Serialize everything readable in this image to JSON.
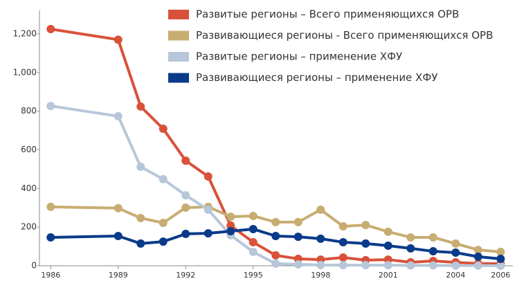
{
  "chart_data": {
    "type": "line",
    "x": [
      1986,
      1989,
      1990,
      1991,
      1992,
      1993,
      1994,
      1995,
      1996,
      1997,
      1998,
      1999,
      2000,
      2001,
      2002,
      2003,
      2004,
      2005,
      2006
    ],
    "series": [
      {
        "name": "Развитые регионы – Всего применяющихся ОРВ",
        "color": "#d9513a",
        "values": [
          1225,
          1170,
          824,
          709,
          544,
          462,
          208,
          122,
          54,
          36,
          32,
          43,
          29,
          32,
          18,
          25,
          18,
          11,
          11
        ]
      },
      {
        "name": "Развивающиеся регионы - Всего применяющихся ОРВ",
        "color": "#c8ad72",
        "values": [
          305,
          298,
          247,
          222,
          301,
          305,
          254,
          258,
          226,
          226,
          290,
          204,
          211,
          176,
          147,
          147,
          115,
          82,
          72
        ]
      },
      {
        "name": "Развитые регионы – применение ХФУ",
        "color": "#b7c7d9",
        "values": [
          827,
          774,
          512,
          448,
          365,
          290,
          158,
          72,
          11,
          7,
          4,
          3,
          3,
          3,
          2,
          2,
          1,
          1,
          0
        ]
      },
      {
        "name": "Развивающиеся регионы – применение ХФУ",
        "color": "#0a3a8a",
        "values": [
          147,
          154,
          115,
          125,
          165,
          168,
          179,
          190,
          154,
          150,
          140,
          122,
          115,
          104,
          90,
          75,
          68,
          47,
          36
        ]
      }
    ],
    "xlim": [
      1985.5,
      2006.3
    ],
    "xticks": [
      1986,
      1989,
      1992,
      1995,
      1998,
      2001,
      2004,
      2006
    ],
    "ylim": [
      0,
      1250
    ],
    "yticks": [
      0,
      200,
      400,
      600,
      800,
      {
        "value": 1000,
        "label": "1,000"
      },
      {
        "value": 1200,
        "label": "1,200"
      }
    ],
    "grid": false,
    "legend": "top-right"
  }
}
